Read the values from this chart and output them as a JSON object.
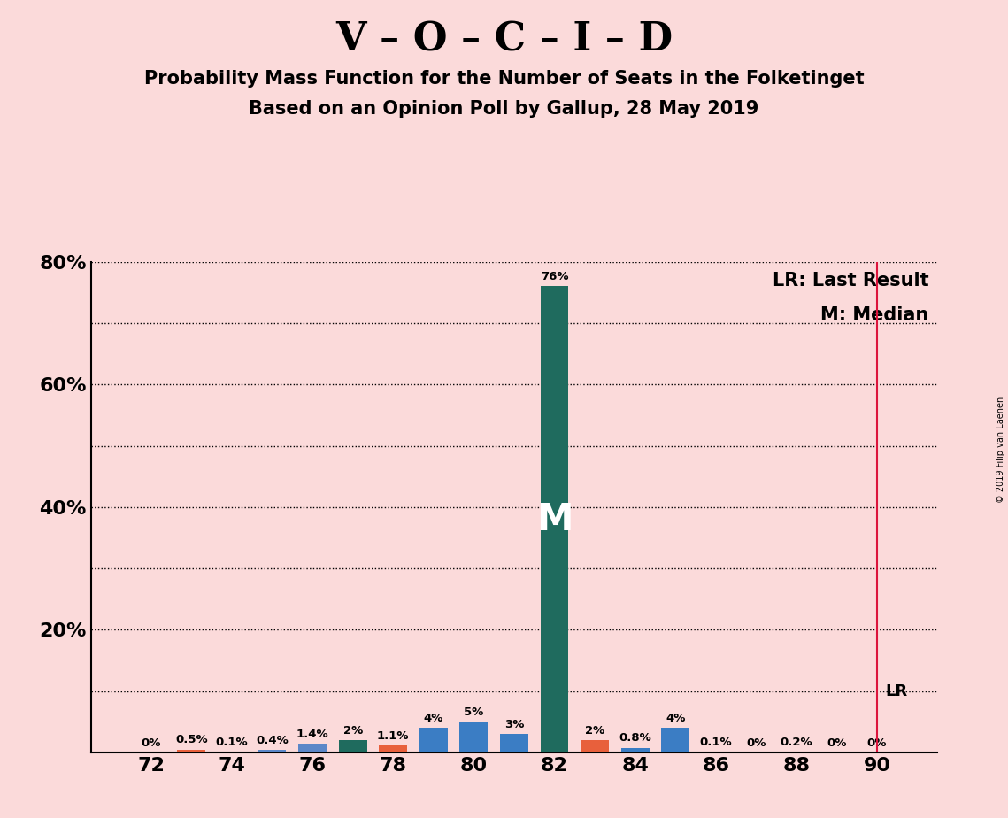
{
  "title_main": "V – O – C – I – D",
  "subtitle1": "Probability Mass Function for the Number of Seats in the Folketinget",
  "subtitle2": "Based on an Opinion Poll by Gallup, 28 May 2019",
  "copyright": "© 2019 Filip van Laenen",
  "seats": [
    72,
    73,
    74,
    75,
    76,
    77,
    78,
    79,
    80,
    81,
    82,
    83,
    84,
    85,
    86,
    87,
    88,
    89,
    90
  ],
  "values": [
    0.0,
    0.5,
    0.1,
    0.4,
    1.4,
    2.0,
    1.1,
    4.0,
    5.0,
    3.0,
    76.0,
    2.0,
    0.8,
    4.0,
    0.1,
    0.0,
    0.2,
    0.0,
    0.0
  ],
  "labels": [
    "0%",
    "0.5%",
    "0.1%",
    "0.4%",
    "1.4%",
    "2%",
    "1.1%",
    "4%",
    "5%",
    "3%",
    "76%",
    "2%",
    "0.8%",
    "4%",
    "0.1%",
    "0%",
    "0.2%",
    "0%",
    "0%"
  ],
  "colors": [
    "#F5A0A0",
    "#E8603C",
    "#5B87C8",
    "#5B87C8",
    "#5B87C8",
    "#1F6B5E",
    "#E8603C",
    "#3B7DC4",
    "#3B7DC4",
    "#3B7DC4",
    "#1F6B5E",
    "#E8603C",
    "#3B7DC4",
    "#3B7DC4",
    "#3B7DC4",
    "#5B87C8",
    "#5B87C8",
    "#5B87C8",
    "#5B87C8"
  ],
  "median_seat": 82,
  "last_result_seat": 90,
  "background_color": "#FBDADA",
  "bar_width": 0.7,
  "ylim_max": 80,
  "yticks_major": [
    0,
    20,
    40,
    60,
    80
  ],
  "yticks_major_labels": [
    "",
    "20%",
    "40%",
    "60%",
    "80%"
  ],
  "yticks_minor": [
    10,
    30,
    50,
    70
  ],
  "xticks": [
    72,
    74,
    76,
    78,
    80,
    82,
    84,
    86,
    88,
    90
  ],
  "legend_lr": "LR: Last Result",
  "legend_m": "M: Median",
  "lr_label": "LR",
  "m_label": "M"
}
